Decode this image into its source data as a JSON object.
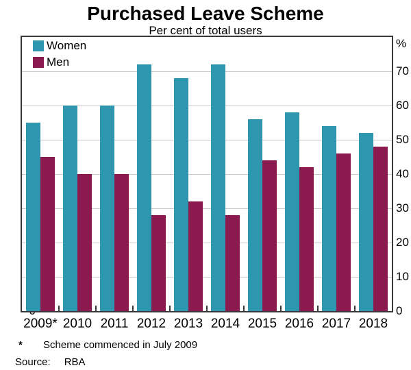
{
  "chart_data": {
    "type": "bar",
    "title": "Purchased Leave Scheme",
    "subtitle": "Per cent of total users",
    "unit": "%",
    "categories": [
      "2009*",
      "2010",
      "2011",
      "2012",
      "2013",
      "2014",
      "2015",
      "2016",
      "2017",
      "2018"
    ],
    "series": [
      {
        "name": "Women",
        "color": "#2E96AE",
        "values": [
          55,
          60,
          60,
          72,
          68,
          72,
          56,
          58,
          54,
          52
        ]
      },
      {
        "name": "Men",
        "color": "#8B1A4E",
        "values": [
          45,
          40,
          40,
          28,
          32,
          28,
          44,
          42,
          46,
          48
        ]
      }
    ],
    "ylim": [
      0,
      80
    ],
    "yticks": [
      0,
      10,
      20,
      30,
      40,
      50,
      60,
      70
    ],
    "grid": true,
    "legend_position": "top-left",
    "gridline_color": "#c9c9c9",
    "frame_color": "#383838"
  },
  "footnotes": [
    {
      "marker": "*",
      "text": "Scheme commenced in July 2009"
    }
  ],
  "source": {
    "label": "Source:",
    "value": "RBA"
  }
}
